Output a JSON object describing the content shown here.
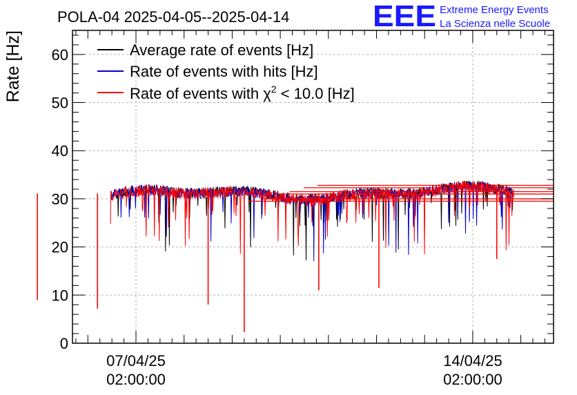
{
  "chart_data": {
    "type": "line",
    "title": "POLA-04 2025-04-05--2025-04-14",
    "ylabel": "Rate [Hz]",
    "xlabel": "",
    "ylim": [
      0,
      65
    ],
    "yticks": [
      0,
      10,
      20,
      30,
      40,
      50,
      60
    ],
    "xlim_days": [
      -1.32,
      8.68
    ],
    "xticks": [
      {
        "day": 0,
        "date": "07/04/25",
        "time": "02:00:00"
      },
      {
        "day": 7,
        "date": "14/04/25",
        "time": "02:00:00"
      }
    ],
    "grid": true,
    "legend_position": "top-left",
    "legend": [
      {
        "label": "Average rate of events [Hz]",
        "color": "#000000"
      },
      {
        "label": "Rate of events with hits [Hz]",
        "color": "#0000cc"
      },
      {
        "label_prefix": "Rate of events with ",
        "label_symbol": "χ",
        "label_sup": "2",
        "label_suffix": " < 10.0 [Hz]",
        "color": "#ff0000"
      }
    ],
    "series": [
      {
        "name": "Average rate of events",
        "color": "#000000",
        "x_start_day": -2.1,
        "x_end_day": 8.7,
        "baseline_start": 30.8,
        "baseline_end": 31.5,
        "noise": 1.1
      },
      {
        "name": "Rate of events with hits",
        "color": "#0000cc",
        "x_start_day": -2.1,
        "x_end_day": 8.7,
        "baseline_start": 30.7,
        "baseline_end": 31.4,
        "noise": 1.1
      },
      {
        "name": "Rate of events with chi2 < 10.0",
        "color": "#ff0000",
        "x_start_day": -2.1,
        "x_end_day": 8.7,
        "baseline_start": 30.6,
        "baseline_end": 31.3,
        "noise": 1.2,
        "notable_dips": [
          {
            "day": -2.05,
            "value": 9
          },
          {
            "day": -0.8,
            "value": 7.2
          },
          {
            "day": 1.5,
            "value": 8
          },
          {
            "day": 2.25,
            "value": 2.3
          },
          {
            "day": 3.8,
            "value": 11
          },
          {
            "day": 5.05,
            "value": 11.5
          },
          {
            "day": 7.5,
            "value": 17.5
          }
        ]
      }
    ],
    "tail_lines": [
      29.5,
      30.0,
      31.0,
      31.5,
      32.3,
      32.8
    ]
  },
  "logo": {
    "mark": "EEE",
    "line1": "Extreme Energy Events",
    "line2": "La Scienza nelle Scuole",
    "color": "#1a1aff"
  },
  "colors": {
    "grid": "#b3b3b3",
    "axis": "#000000"
  }
}
